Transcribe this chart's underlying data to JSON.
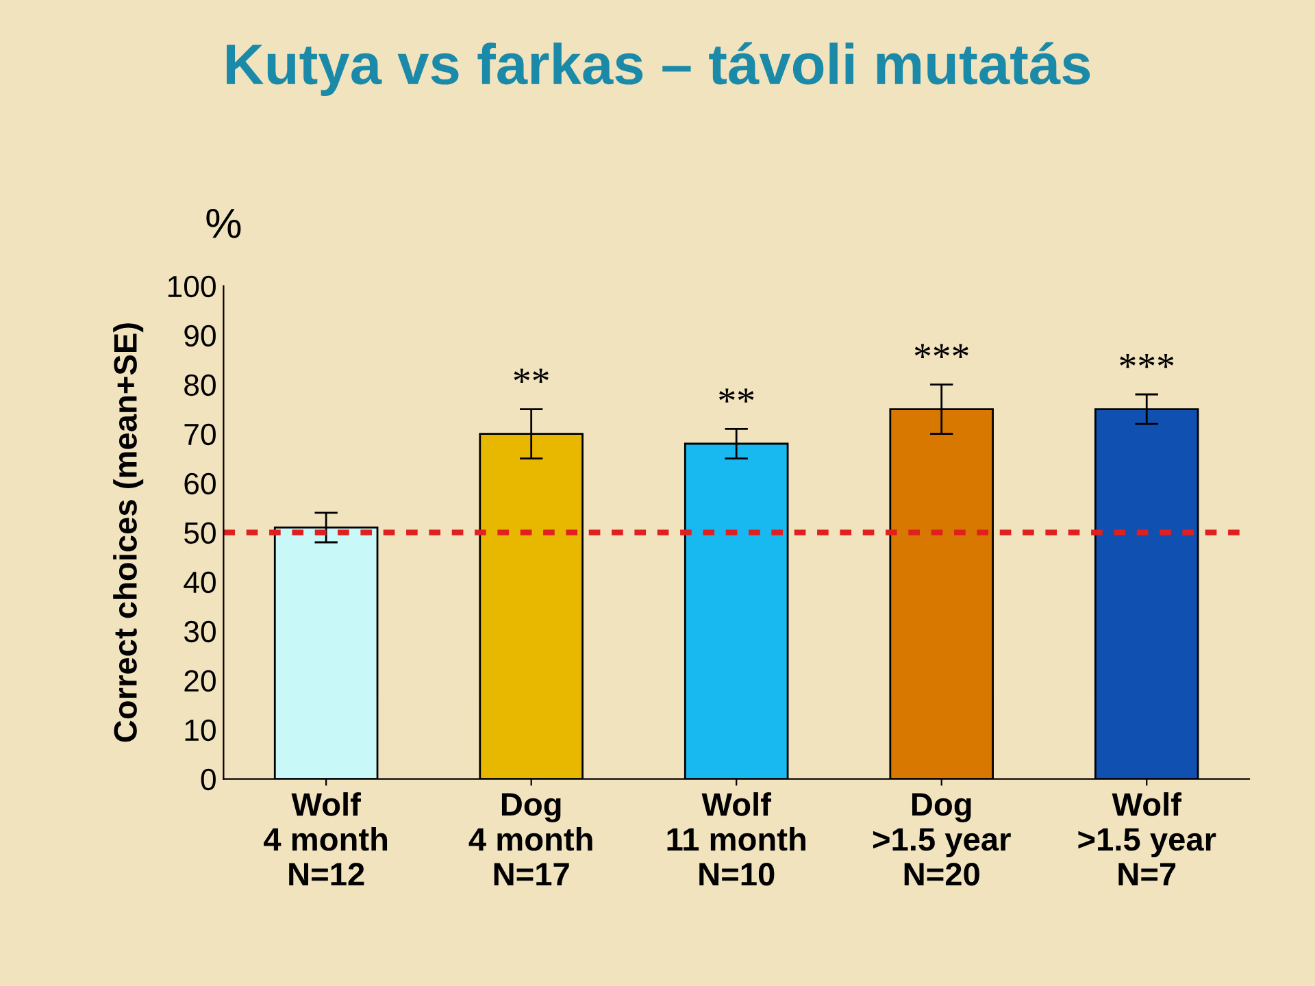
{
  "chart_data": {
    "type": "bar",
    "title": "Kutya vs farkas – távoli mutatás",
    "ylabel": "Correct choices (mean+SE)",
    "categories": [
      "Wolf\n4 month\nN=12",
      "Dog\n4 month\nN=17",
      "Wolf\n11 month\nN=10",
      "Dog\n>1.5 year\nN=20",
      "Wolf\n>1.5 year\nN=7"
    ],
    "values": [
      51,
      70,
      68,
      75,
      75
    ],
    "errors": [
      3,
      5,
      3,
      5,
      3
    ],
    "colors": [
      "#c8f8f8",
      "#e8b800",
      "#18b8f0",
      "#d87800",
      "#1050b0"
    ],
    "ylim": [
      0,
      100
    ],
    "yticks": [
      0,
      10,
      20,
      30,
      40,
      50,
      60,
      70,
      80,
      90,
      100
    ],
    "ref_lines": [
      {
        "axis": "y",
        "value": 50,
        "label": null,
        "color": "#e02020",
        "line_style": "dotted"
      }
    ],
    "annotations": [
      "%",
      "**",
      "**",
      "***",
      "***"
    ],
    "grid": false,
    "legend": false
  }
}
